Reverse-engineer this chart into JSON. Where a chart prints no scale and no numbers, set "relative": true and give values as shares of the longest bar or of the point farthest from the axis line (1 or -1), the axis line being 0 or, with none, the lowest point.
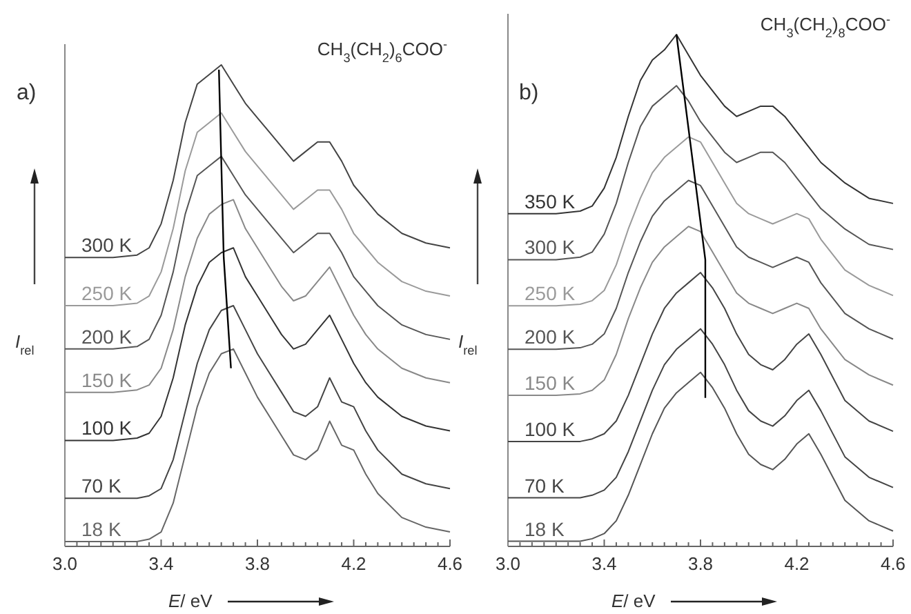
{
  "chart_data": [
    {
      "type": "line",
      "relative": true,
      "subtitle": "a)",
      "title": "CH$_{3}$(CH$_{2}$)$_{6}$COO$^{-}$",
      "xlabel": "E/ eV",
      "ylabel": "I$_{rel}$",
      "xlim": [
        3.0,
        4.6
      ],
      "xticks": [
        {
          "value": 3.0,
          "label": "3.0"
        },
        {
          "value": 3.05,
          "label": null
        },
        {
          "value": 3.1,
          "label": null
        },
        {
          "value": 3.15,
          "label": null
        },
        {
          "value": 3.2,
          "label": null
        },
        {
          "value": 3.25,
          "label": null
        },
        {
          "value": 3.3,
          "label": null
        },
        {
          "value": 3.35,
          "label": null
        },
        3.4,
        {
          "value": 3.45,
          "label": null
        },
        {
          "value": 3.5,
          "label": null
        },
        {
          "value": 3.55,
          "label": null
        },
        {
          "value": 3.6,
          "label": null
        },
        {
          "value": 3.65,
          "label": null
        },
        {
          "value": 3.7,
          "label": null
        },
        {
          "value": 3.75,
          "label": null
        },
        3.8,
        {
          "value": 3.85,
          "label": null
        },
        {
          "value": 3.9,
          "label": null
        },
        {
          "value": 3.95,
          "label": null
        },
        {
          "value": 4.0,
          "label": null
        },
        {
          "value": 4.05,
          "label": null
        },
        {
          "value": 4.1,
          "label": null
        },
        {
          "value": 4.15,
          "label": null
        },
        4.2,
        {
          "value": 4.25,
          "label": null
        },
        {
          "value": 4.3,
          "label": null
        },
        {
          "value": 4.35,
          "label": null
        },
        {
          "value": 4.4,
          "label": null
        },
        {
          "value": 4.45,
          "label": null
        },
        {
          "value": 4.5,
          "label": null
        },
        {
          "value": 4.55,
          "label": null
        },
        4.6
      ],
      "x": [
        3.0,
        3.2,
        3.3,
        3.35,
        3.4,
        3.45,
        3.5,
        3.55,
        3.6,
        3.65,
        3.7,
        3.75,
        3.8,
        3.85,
        3.9,
        3.95,
        4.0,
        4.05,
        4.1,
        4.15,
        4.2,
        4.25,
        4.3,
        4.4,
        4.5,
        4.6
      ],
      "series": [
        {
          "name": "300 K",
          "color": "#444444",
          "values": [
            0.6,
            0.6,
            0.605,
            0.62,
            0.67,
            0.76,
            0.88,
            0.96,
            0.98,
            1.0,
            0.96,
            0.92,
            0.89,
            0.86,
            0.83,
            0.8,
            0.82,
            0.84,
            0.84,
            0.8,
            0.75,
            0.72,
            0.69,
            0.65,
            0.63,
            0.62
          ]
        },
        {
          "name": "250 K",
          "color": "#9a9a9a",
          "values": [
            0.5,
            0.5,
            0.505,
            0.52,
            0.57,
            0.66,
            0.78,
            0.86,
            0.88,
            0.9,
            0.86,
            0.82,
            0.79,
            0.76,
            0.73,
            0.7,
            0.72,
            0.74,
            0.74,
            0.7,
            0.65,
            0.62,
            0.59,
            0.55,
            0.53,
            0.52
          ]
        },
        {
          "name": "200 K",
          "color": "#555555",
          "values": [
            0.41,
            0.41,
            0.415,
            0.43,
            0.48,
            0.57,
            0.69,
            0.77,
            0.79,
            0.81,
            0.77,
            0.73,
            0.7,
            0.67,
            0.64,
            0.61,
            0.63,
            0.65,
            0.65,
            0.61,
            0.56,
            0.53,
            0.5,
            0.46,
            0.44,
            0.43
          ]
        },
        {
          "name": "150 K",
          "color": "#888888",
          "values": [
            0.32,
            0.32,
            0.325,
            0.335,
            0.37,
            0.45,
            0.56,
            0.64,
            0.69,
            0.71,
            0.72,
            0.66,
            0.62,
            0.58,
            0.54,
            0.51,
            0.52,
            0.55,
            0.58,
            0.53,
            0.48,
            0.44,
            0.41,
            0.37,
            0.35,
            0.34
          ]
        },
        {
          "name": "100 K",
          "color": "#333333",
          "values": [
            0.22,
            0.22,
            0.225,
            0.235,
            0.27,
            0.35,
            0.46,
            0.54,
            0.59,
            0.61,
            0.62,
            0.56,
            0.52,
            0.48,
            0.44,
            0.41,
            0.42,
            0.45,
            0.48,
            0.43,
            0.38,
            0.34,
            0.31,
            0.27,
            0.25,
            0.24
          ]
        },
        {
          "name": "70 K",
          "color": "#444444",
          "values": [
            0.1,
            0.1,
            0.1,
            0.105,
            0.12,
            0.18,
            0.28,
            0.38,
            0.45,
            0.49,
            0.5,
            0.45,
            0.4,
            0.36,
            0.32,
            0.28,
            0.27,
            0.29,
            0.35,
            0.3,
            0.29,
            0.24,
            0.2,
            0.15,
            0.13,
            0.12
          ]
        },
        {
          "name": "18 K",
          "color": "#666666",
          "values": [
            0.01,
            0.01,
            0.01,
            0.015,
            0.03,
            0.09,
            0.19,
            0.29,
            0.36,
            0.4,
            0.41,
            0.36,
            0.31,
            0.27,
            0.23,
            0.19,
            0.18,
            0.2,
            0.26,
            0.21,
            0.2,
            0.15,
            0.11,
            0.06,
            0.04,
            0.03
          ]
        },
        {
          "type": "line",
          "color": "#000000",
          "x": [
            3.64,
            3.66,
            3.69
          ],
          "values": [
            0.99,
            0.6,
            0.37
          ]
        }
      ]
    },
    {
      "type": "line",
      "relative": true,
      "subtitle": "b)",
      "title": "CH$_{3}$(CH$_{2}$)$_{8}$COO$^{-}$",
      "xlabel": "E/ eV",
      "ylabel": "I$_{rel}$",
      "xlim": [
        3.0,
        4.6
      ],
      "xticks": [
        {
          "value": 3.0,
          "label": "3.0"
        },
        {
          "value": 3.05,
          "label": null
        },
        {
          "value": 3.1,
          "label": null
        },
        {
          "value": 3.15,
          "label": null
        },
        {
          "value": 3.2,
          "label": null
        },
        {
          "value": 3.25,
          "label": null
        },
        {
          "value": 3.3,
          "label": null
        },
        {
          "value": 3.35,
          "label": null
        },
        3.4,
        {
          "value": 3.45,
          "label": null
        },
        {
          "value": 3.5,
          "label": null
        },
        {
          "value": 3.55,
          "label": null
        },
        {
          "value": 3.6,
          "label": null
        },
        {
          "value": 3.65,
          "label": null
        },
        {
          "value": 3.7,
          "label": null
        },
        {
          "value": 3.75,
          "label": null
        },
        3.8,
        {
          "value": 3.85,
          "label": null
        },
        {
          "value": 3.9,
          "label": null
        },
        {
          "value": 3.95,
          "label": null
        },
        {
          "value": 4.0,
          "label": null
        },
        {
          "value": 4.05,
          "label": null
        },
        {
          "value": 4.1,
          "label": null
        },
        {
          "value": 4.15,
          "label": null
        },
        4.2,
        {
          "value": 4.25,
          "label": null
        },
        {
          "value": 4.3,
          "label": null
        },
        {
          "value": 4.35,
          "label": null
        },
        {
          "value": 4.4,
          "label": null
        },
        {
          "value": 4.45,
          "label": null
        },
        {
          "value": 4.5,
          "label": null
        },
        {
          "value": 4.55,
          "label": null
        },
        4.6
      ],
      "x": [
        3.0,
        3.2,
        3.3,
        3.35,
        3.4,
        3.45,
        3.5,
        3.55,
        3.6,
        3.65,
        3.7,
        3.75,
        3.8,
        3.85,
        3.9,
        3.95,
        4.0,
        4.05,
        4.1,
        4.15,
        4.2,
        4.25,
        4.3,
        4.4,
        4.5,
        4.6
      ],
      "series": [
        {
          "name": "350 K",
          "color": "#333333",
          "values": [
            0.65,
            0.65,
            0.655,
            0.665,
            0.7,
            0.76,
            0.84,
            0.91,
            0.95,
            0.97,
            1.0,
            0.96,
            0.92,
            0.89,
            0.86,
            0.84,
            0.85,
            0.86,
            0.86,
            0.84,
            0.81,
            0.78,
            0.75,
            0.71,
            0.68,
            0.67
          ]
        },
        {
          "name": "300 K",
          "color": "#555555",
          "values": [
            0.56,
            0.56,
            0.565,
            0.575,
            0.61,
            0.67,
            0.75,
            0.82,
            0.86,
            0.88,
            0.9,
            0.87,
            0.83,
            0.8,
            0.77,
            0.75,
            0.76,
            0.77,
            0.77,
            0.75,
            0.72,
            0.69,
            0.66,
            0.62,
            0.59,
            0.58
          ]
        },
        {
          "name": "250 K",
          "color": "#9a9a9a",
          "values": [
            0.47,
            0.47,
            0.473,
            0.48,
            0.5,
            0.55,
            0.62,
            0.68,
            0.73,
            0.76,
            0.78,
            0.8,
            0.79,
            0.75,
            0.71,
            0.67,
            0.65,
            0.64,
            0.63,
            0.64,
            0.65,
            0.64,
            0.6,
            0.54,
            0.51,
            0.49
          ]
        },
        {
          "name": "200 K",
          "color": "#555555",
          "values": [
            0.385,
            0.385,
            0.388,
            0.395,
            0.415,
            0.465,
            0.535,
            0.595,
            0.645,
            0.675,
            0.695,
            0.715,
            0.705,
            0.665,
            0.625,
            0.585,
            0.565,
            0.555,
            0.545,
            0.555,
            0.565,
            0.555,
            0.515,
            0.455,
            0.425,
            0.405
          ]
        },
        {
          "name": "150 K",
          "color": "#888888",
          "values": [
            0.295,
            0.295,
            0.298,
            0.305,
            0.325,
            0.375,
            0.445,
            0.505,
            0.555,
            0.585,
            0.605,
            0.625,
            0.615,
            0.575,
            0.535,
            0.495,
            0.475,
            0.465,
            0.455,
            0.465,
            0.475,
            0.465,
            0.425,
            0.365,
            0.335,
            0.315
          ]
        },
        {
          "name": "100 K",
          "color": "#444444",
          "values": [
            0.205,
            0.205,
            0.205,
            0.21,
            0.22,
            0.245,
            0.295,
            0.355,
            0.415,
            0.465,
            0.495,
            0.515,
            0.535,
            0.505,
            0.465,
            0.415,
            0.375,
            0.355,
            0.345,
            0.365,
            0.395,
            0.415,
            0.375,
            0.285,
            0.245,
            0.225
          ]
        },
        {
          "name": "70 K",
          "color": "#444444",
          "values": [
            0.095,
            0.095,
            0.095,
            0.1,
            0.11,
            0.135,
            0.185,
            0.245,
            0.305,
            0.355,
            0.385,
            0.405,
            0.425,
            0.395,
            0.355,
            0.305,
            0.265,
            0.245,
            0.235,
            0.255,
            0.285,
            0.305,
            0.265,
            0.175,
            0.135,
            0.115
          ]
        },
        {
          "name": "18 K",
          "color": "#555555",
          "values": [
            0.01,
            0.01,
            0.01,
            0.015,
            0.025,
            0.05,
            0.1,
            0.16,
            0.22,
            0.27,
            0.3,
            0.32,
            0.34,
            0.31,
            0.27,
            0.22,
            0.18,
            0.16,
            0.15,
            0.17,
            0.2,
            0.22,
            0.18,
            0.09,
            0.05,
            0.03
          ]
        },
        {
          "type": "line",
          "color": "#000000",
          "x": [
            3.7,
            3.82,
            3.82
          ],
          "values": [
            1.0,
            0.56,
            0.29
          ]
        }
      ]
    }
  ]
}
